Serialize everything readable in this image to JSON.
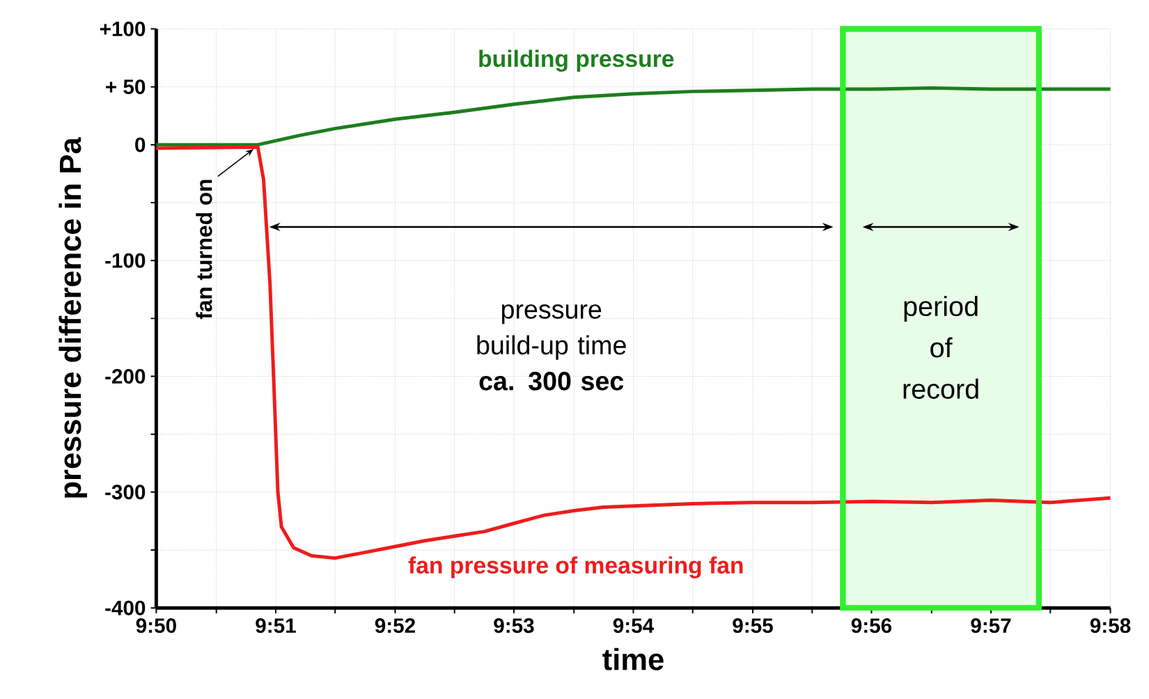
{
  "chart_data": {
    "type": "line",
    "xlabel": "time",
    "ylabel": "pressure difference in Pa",
    "xlim": [
      9.8333,
      9.9667
    ],
    "ylim": [
      -400,
      100
    ],
    "xticks": [
      {
        "value": 9.8333,
        "label": "9:50"
      },
      {
        "value": 9.8417,
        "label": null
      },
      {
        "value": 9.85,
        "label": "9:51"
      },
      {
        "value": 9.8583,
        "label": null
      },
      {
        "value": 9.8667,
        "label": "9:52"
      },
      {
        "value": 9.875,
        "label": null
      },
      {
        "value": 9.8833,
        "label": "9:53"
      },
      {
        "value": 9.8917,
        "label": null
      },
      {
        "value": 9.9,
        "label": "9:54"
      },
      {
        "value": 9.9083,
        "label": null
      },
      {
        "value": 9.9167,
        "label": "9:55"
      },
      {
        "value": 9.925,
        "label": null
      },
      {
        "value": 9.9333,
        "label": "9:56"
      },
      {
        "value": 9.9417,
        "label": null
      },
      {
        "value": 9.95,
        "label": "9:57"
      },
      {
        "value": 9.9583,
        "label": null
      },
      {
        "value": 9.9667,
        "label": "9:58"
      }
    ],
    "yticks": [
      {
        "value": 100,
        "label": "+100"
      },
      {
        "value": 50,
        "label": "+ 50"
      },
      0,
      {
        "value": -50,
        "label": null
      },
      {
        "value": -100,
        "label": "-100"
      },
      {
        "value": -150,
        "label": null
      },
      {
        "value": -200,
        "label": "-200"
      },
      {
        "value": -250,
        "label": null
      },
      {
        "value": -300,
        "label": "-300"
      },
      {
        "value": -350,
        "label": null
      },
      {
        "value": -400,
        "label": "-400"
      }
    ],
    "grid": true,
    "series": [
      {
        "name": "building pressure",
        "color": "#1e7d1e",
        "x": [
          9.8333,
          9.8475,
          9.8533,
          9.8583,
          9.8667,
          9.875,
          9.8833,
          9.8917,
          9.9,
          9.9083,
          9.9167,
          9.925,
          9.9333,
          9.9417,
          9.95,
          9.9583,
          9.9667
        ],
        "values": [
          0,
          0,
          8,
          14,
          22,
          28,
          35,
          41,
          44,
          46,
          47,
          48,
          48,
          49,
          48,
          48,
          48
        ]
      },
      {
        "name": "fan pressure of measuring fan",
        "color": "#ee1c1c",
        "x": [
          9.8333,
          9.8475,
          9.8483,
          9.8492,
          9.8497,
          9.8503,
          9.8508,
          9.8525,
          9.855,
          9.8583,
          9.8625,
          9.8667,
          9.8708,
          9.875,
          9.8792,
          9.8833,
          9.8875,
          9.8917,
          9.8958,
          9.9,
          9.9083,
          9.9167,
          9.925,
          9.9333,
          9.9417,
          9.95,
          9.9583,
          9.9667
        ],
        "values": [
          -3,
          -2,
          -30,
          -120,
          -200,
          -300,
          -330,
          -348,
          -355,
          -357,
          -352,
          -347,
          -342,
          -338,
          -334,
          -327,
          -320,
          -316,
          -313,
          -312,
          -310,
          -309,
          -309,
          -308,
          -309,
          -307,
          -309,
          -305
        ]
      }
    ],
    "bands": [
      {
        "axis": "x",
        "from": 9.9293,
        "to": 9.9567,
        "label": "period of record",
        "color": "#33ee33"
      }
    ],
    "annotations": [
      {
        "text": "fan turned on",
        "x": 9.8475,
        "y": 0
      },
      "pressure build-up time **ca. 300 sec**"
    ]
  }
}
